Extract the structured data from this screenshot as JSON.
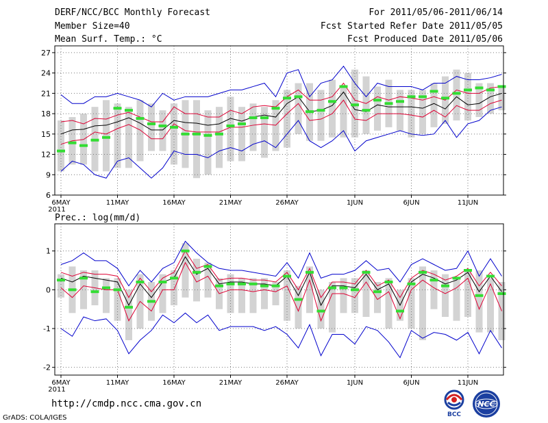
{
  "header": {
    "title": "DERF/NCC/BCC Monthly Forecast",
    "member_size": "Member Size=40",
    "variable": "Mean Surf. Temp.: °C",
    "forecast_period": "For 2011/05/06-2011/06/14",
    "started_refer_date": "Fcst Started Refer Date 2011/05/05",
    "produced_date": "Fcst Produced Date 2011/05/06"
  },
  "panel2_label": "Prec.: log(mm/d)",
  "footer": {
    "url": "http://cmdp.ncc.cma.gov.cn",
    "credit": "GrADS: COLA/IGES"
  },
  "logos": {
    "bcc": "BCC",
    "ncc": "NCC"
  },
  "colors": {
    "box": "#d3d3d3",
    "median": "#33dd33",
    "mean": "#000000",
    "inner": "#dd0033",
    "outer": "#0000cc",
    "grid": "#777777"
  },
  "chart_data": [
    {
      "type": "box-ensemble",
      "title": "Mean Surf. Temp.: °C",
      "ylim": [
        6,
        28
      ],
      "yticks": [
        6,
        9,
        12,
        15,
        18,
        21,
        24,
        27
      ],
      "xlabel_ticks": [
        {
          "day": 0,
          "label": "6MAY",
          "sub": "2011"
        },
        {
          "day": 5,
          "label": "11MAY"
        },
        {
          "day": 10,
          "label": "16MAY"
        },
        {
          "day": 15,
          "label": "21MAY"
        },
        {
          "day": 20,
          "label": "26MAY"
        },
        {
          "day": 26,
          "label": "1JUN"
        },
        {
          "day": 31,
          "label": "6JUN"
        },
        {
          "day": 36,
          "label": "11JUN"
        }
      ],
      "days": 40,
      "series": {
        "box_low": [
          9.5,
          10.5,
          10.5,
          9.5,
          9.5,
          10,
          10,
          11,
          12.5,
          12.5,
          10.5,
          10,
          8.5,
          9,
          10,
          11,
          11,
          12.5,
          11.5,
          12.5,
          13,
          15,
          14,
          14,
          14.5,
          14.5,
          14.5,
          15,
          15.5,
          16,
          15.5,
          14.5,
          15,
          16,
          16.5,
          17,
          17,
          17.5,
          18,
          18.5
        ],
        "box_high": [
          17,
          17.5,
          18,
          19,
          20,
          19.5,
          19,
          20,
          19.5,
          18.5,
          19.5,
          20,
          20,
          18.5,
          19,
          20.5,
          19,
          19.5,
          19,
          20,
          21.5,
          22.5,
          22.5,
          21.5,
          23,
          22,
          24.5,
          23.5,
          22,
          23,
          21.5,
          21.5,
          21.5,
          22.5,
          23.5,
          24.5,
          24,
          22.5,
          22.5,
          22
        ],
        "median": [
          12.5,
          13.7,
          13.3,
          14.1,
          14.5,
          18.8,
          18.5,
          17.3,
          16.5,
          16.2,
          16,
          15,
          15,
          14.8,
          15,
          16.2,
          16.5,
          17.4,
          17.4,
          18.8,
          20.3,
          20.5,
          18.3,
          18.5,
          19.8,
          22,
          19.3,
          18.5,
          20,
          19.5,
          19.8,
          20.5,
          20.5,
          21.3,
          20.3,
          21,
          21.5,
          21.8,
          21.5,
          22
        ],
        "mean": [
          15,
          15.6,
          15.7,
          16.2,
          16.3,
          16.8,
          17.4,
          16.6,
          15.6,
          15.6,
          17,
          16.7,
          16.6,
          16.3,
          16.5,
          17.3,
          16.9,
          17.5,
          17.8,
          17.5,
          19.5,
          20.5,
          18.3,
          18.5,
          19.2,
          21.2,
          18.6,
          18.3,
          19.3,
          19,
          19,
          19,
          18.8,
          19.5,
          18.7,
          20.5,
          19.3,
          19.5,
          20.5,
          21
        ],
        "inner_high": [
          16.8,
          17,
          16.5,
          17.3,
          17.2,
          17.8,
          18.2,
          17.5,
          16.8,
          16.8,
          19,
          18,
          18,
          17.5,
          17.5,
          18.5,
          18,
          19,
          19.2,
          19,
          20.5,
          21.5,
          20,
          20,
          20.5,
          22.5,
          20,
          19.5,
          20.5,
          20,
          20.5,
          20.3,
          20,
          20.5,
          20,
          21.5,
          21,
          21,
          21.8,
          22
        ],
        "inner_low": [
          13.5,
          14,
          14.2,
          15.3,
          15,
          15.8,
          16.4,
          15.6,
          14.3,
          14.3,
          16.5,
          15.5,
          15.3,
          15.3,
          15.3,
          16,
          16,
          16.3,
          16.5,
          16.3,
          18,
          19.5,
          17,
          17.2,
          18,
          20,
          17.2,
          17,
          18,
          18,
          18,
          17.8,
          17.5,
          18.5,
          17.5,
          19.2,
          18.5,
          18.5,
          19.5,
          20
        ],
        "outer_high": [
          20.8,
          19.5,
          19.5,
          20.5,
          20.5,
          21,
          20.5,
          20,
          19,
          21,
          20,
          20.5,
          20.5,
          20.5,
          21,
          21.5,
          21.5,
          22,
          22.5,
          20.5,
          24,
          24.5,
          20.5,
          22.5,
          23,
          25,
          22.5,
          20.5,
          22.5,
          22,
          22,
          22,
          21.5,
          22.5,
          22.5,
          23.5,
          23,
          23,
          23.3,
          23.8
        ],
        "outer_low": [
          9.5,
          11,
          10.5,
          9,
          8.5,
          11,
          11.5,
          10,
          8.5,
          10,
          12.5,
          12,
          12,
          11.5,
          12.5,
          13,
          12.5,
          13.5,
          14,
          13,
          15,
          17,
          14,
          13,
          14,
          15.5,
          12.5,
          14,
          14.5,
          15,
          15.5,
          15,
          14.8,
          15,
          17,
          14.5,
          16.5,
          17,
          18.5,
          19
        ]
      }
    },
    {
      "type": "box-ensemble",
      "title": "Prec.: log(mm/d)",
      "ylim": [
        -2.2,
        1.7
      ],
      "yticks": [
        -2,
        -1,
        0,
        1
      ],
      "xlabel_ticks": [
        {
          "day": 0,
          "label": "6MAY",
          "sub": "2011"
        },
        {
          "day": 5,
          "label": "11MAY"
        },
        {
          "day": 10,
          "label": "16MAY"
        },
        {
          "day": 15,
          "label": "21MAY"
        },
        {
          "day": 20,
          "label": "26MAY"
        },
        {
          "day": 26,
          "label": "1JUN"
        },
        {
          "day": 31,
          "label": "6JUN"
        },
        {
          "day": 36,
          "label": "11JUN"
        }
      ],
      "days": 40,
      "series": {
        "box_low": [
          -0.2,
          -0.6,
          -0.5,
          -0.4,
          -0.6,
          -0.8,
          -1.3,
          -1,
          -0.8,
          -0.6,
          -0.4,
          -0.2,
          -0.3,
          -0.2,
          -0.5,
          -0.6,
          -0.6,
          -0.6,
          -0.5,
          -0.4,
          -0.8,
          -1,
          -0.6,
          -1,
          -1.1,
          -0.6,
          -0.6,
          -0.7,
          -0.6,
          -1,
          -0.8,
          -1,
          -1.3,
          -0.5,
          -0.7,
          -0.8,
          -0.7,
          -1.1,
          -1.1,
          -1.3
        ],
        "box_high": [
          0.4,
          0.6,
          0.5,
          0.5,
          0.3,
          0.3,
          0,
          0.4,
          0.2,
          0.4,
          0.5,
          1.2,
          0.8,
          0.7,
          0.3,
          0.4,
          0.3,
          0.3,
          0.3,
          0.2,
          0.5,
          0.1,
          0.6,
          0,
          0.2,
          0.3,
          0.3,
          0.5,
          0.2,
          0.3,
          0,
          0.3,
          0.6,
          0.5,
          0.4,
          0.3,
          0.5,
          0.5,
          0.3,
          0.2
        ],
        "median": [
          0.25,
          0,
          0.3,
          -0.05,
          0.05,
          0,
          -0.45,
          0.2,
          -0.3,
          0.2,
          0.3,
          1,
          0.45,
          0.6,
          0.1,
          0.15,
          0.15,
          0.15,
          0.1,
          0.1,
          0.35,
          -0.25,
          0.45,
          -0.55,
          0.05,
          0.05,
          0,
          0.45,
          -0.05,
          0.2,
          -0.55,
          0.15,
          0.45,
          0.25,
          0.1,
          0.3,
          0.5,
          -0.15,
          0.35,
          -0.1
        ],
        "mean": [
          0.3,
          0.2,
          0.35,
          0.3,
          0.25,
          0.2,
          -0.4,
          0.15,
          -0.2,
          0.2,
          0.3,
          0.85,
          0.4,
          0.55,
          0.15,
          0.2,
          0.2,
          0.15,
          0.15,
          0.1,
          0.35,
          -0.15,
          0.45,
          -0.4,
          0.1,
          0.1,
          0.05,
          0.4,
          0,
          0.15,
          -0.4,
          0.2,
          0.4,
          0.3,
          0.15,
          0.25,
          0.45,
          -0.05,
          0.35,
          -0.05
        ],
        "inner_high": [
          0.45,
          0.35,
          0.45,
          0.4,
          0.4,
          0.35,
          -0.2,
          0.3,
          -0.05,
          0.3,
          0.45,
          1,
          0.55,
          0.65,
          0.25,
          0.3,
          0.3,
          0.25,
          0.25,
          0.2,
          0.45,
          0,
          0.55,
          -0.2,
          0.2,
          0.2,
          0.15,
          0.5,
          0.1,
          0.25,
          -0.2,
          0.3,
          0.5,
          0.4,
          0.25,
          0.35,
          0.55,
          0.1,
          0.45,
          0.1
        ],
        "inner_low": [
          0.05,
          -0.2,
          0.1,
          0.05,
          0,
          0,
          -0.8,
          -0.3,
          -0.55,
          0,
          0,
          0.7,
          0.2,
          0.35,
          -0.1,
          0,
          0,
          -0.05,
          0,
          -0.05,
          0.1,
          -0.55,
          0.25,
          -0.8,
          -0.1,
          -0.1,
          -0.2,
          0.2,
          -0.25,
          -0.05,
          -0.75,
          0,
          0.25,
          0.05,
          -0.1,
          0.05,
          0.3,
          -0.5,
          0.15,
          -0.55
        ],
        "outer_high": [
          0.65,
          0.75,
          0.95,
          0.75,
          0.75,
          0.55,
          0.1,
          0.5,
          0.2,
          0.55,
          0.7,
          1.25,
          0.95,
          0.7,
          0.55,
          0.5,
          0.5,
          0.45,
          0.4,
          0.35,
          0.7,
          0.3,
          0.95,
          0.3,
          0.4,
          0.4,
          0.5,
          0.75,
          0.5,
          0.55,
          0.2,
          0.65,
          0.8,
          0.65,
          0.5,
          0.55,
          1,
          0.35,
          0.8,
          0.35
        ],
        "outer_low": [
          -1,
          -1.2,
          -0.7,
          -0.8,
          -0.75,
          -1.05,
          -1.65,
          -1.3,
          -1.05,
          -0.65,
          -0.85,
          -0.6,
          -0.85,
          -0.65,
          -1.05,
          -0.95,
          -0.95,
          -0.95,
          -1.05,
          -0.95,
          -1.15,
          -1.5,
          -0.9,
          -1.7,
          -1.15,
          -1.15,
          -1.4,
          -0.95,
          -1.05,
          -1.35,
          -1.75,
          -1.05,
          -1.25,
          -1.1,
          -1.15,
          -1.3,
          -1.1,
          -1.65,
          -1.05,
          -1.5
        ]
      }
    }
  ]
}
